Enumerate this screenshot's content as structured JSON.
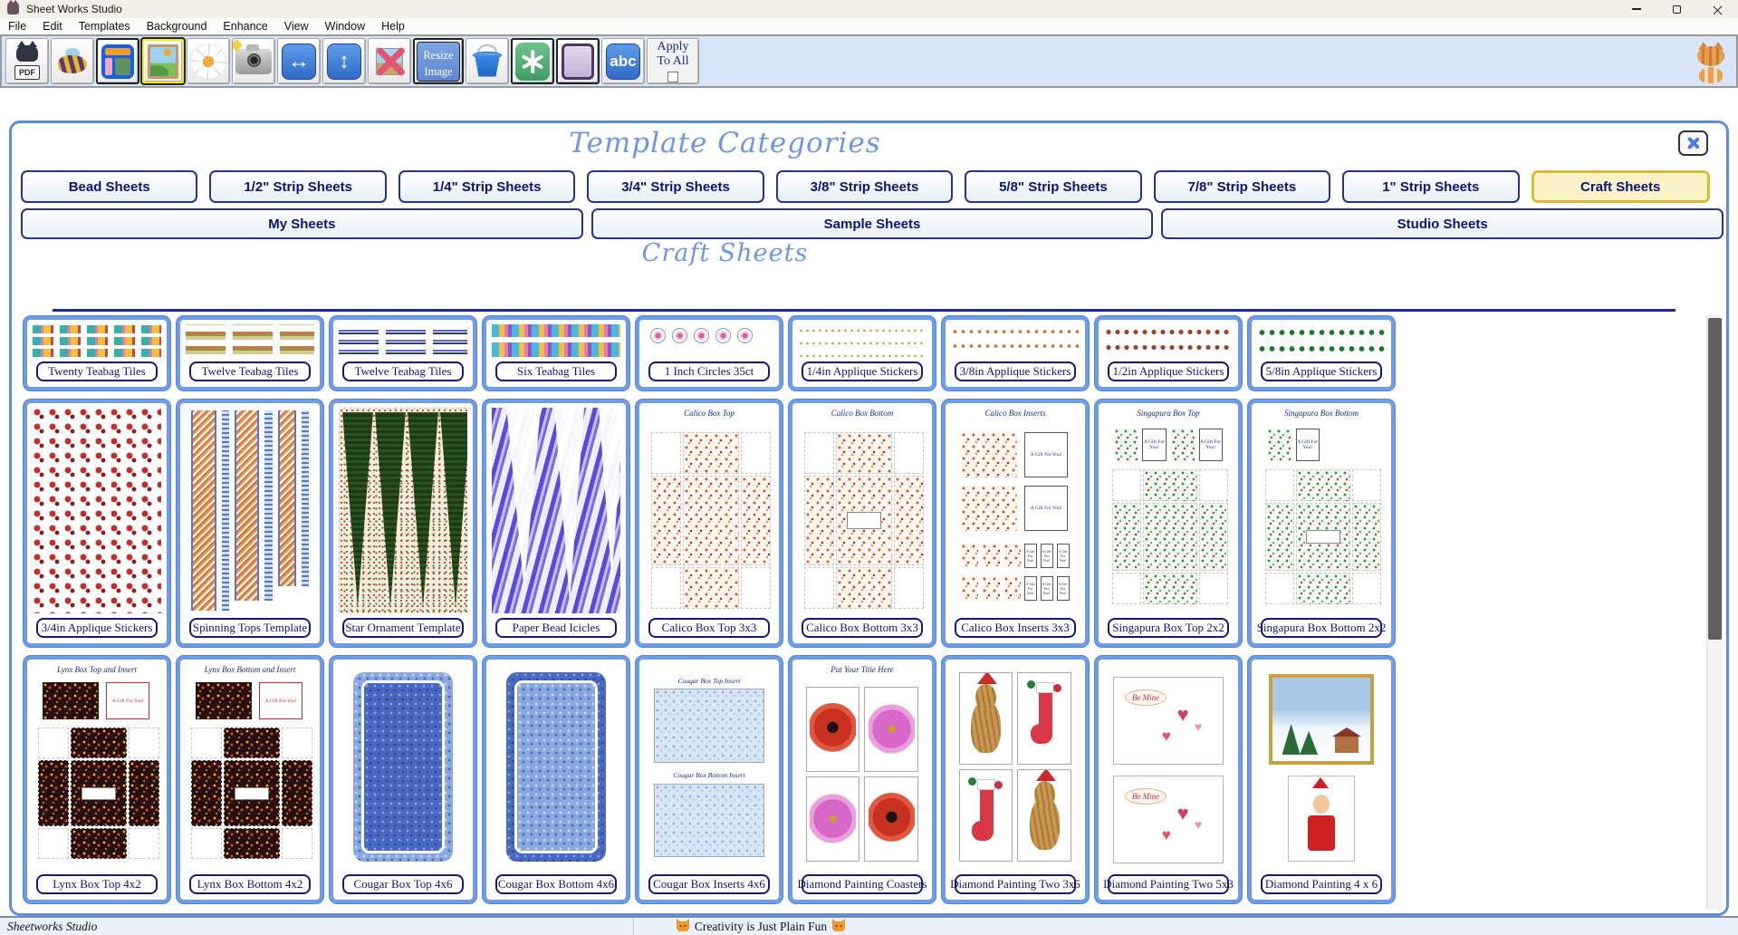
{
  "window": {
    "title": "Sheet Works Studio"
  },
  "menu": {
    "items": [
      "File",
      "Edit",
      "Templates",
      "Background",
      "Enhance",
      "View",
      "Window",
      "Help"
    ]
  },
  "toolbar": {
    "pdf_label": "PDF",
    "resize_label_1": "Resize",
    "resize_label_2": "Image",
    "abc_label": "abc",
    "apply_label_1": "Apply",
    "apply_label_2": "To All",
    "buttons": [
      "pdf-export",
      "bee",
      "layout-template",
      "insert-image",
      "daisy",
      "camera",
      "flip-horizontal",
      "flip-vertical",
      "remove-image",
      "resize-image",
      "paint-bucket",
      "green-asterisk",
      "purple-swatch",
      "text-abc",
      "apply-to-all"
    ],
    "selected_button": "insert-image"
  },
  "dialog": {
    "title": "Template Categories",
    "categories_row1": [
      "Bead Sheets",
      "1/2\" Strip Sheets",
      "1/4\" Strip Sheets",
      "3/4\" Strip Sheets",
      "3/8\" Strip Sheets",
      "5/8\" Strip Sheets",
      "7/8\" Strip Sheets",
      "1\" Strip Sheets",
      "Craft Sheets"
    ],
    "active_category": "Craft Sheets",
    "categories_row2": [
      "My Sheets",
      "Sample Sheets",
      "Studio Sheets"
    ],
    "section_title": "Craft Sheets",
    "grid": {
      "gift_text": "A Gift For You!",
      "rows": [
        {
          "cards": [
            {
              "label": "Twenty Teabag Tiles",
              "art": "teabag-multi"
            },
            {
              "label": "Twelve Teabag Tiles",
              "art": "teabag-tan"
            },
            {
              "label": "Twelve Teabag Tiles",
              "art": "teabag-navy"
            },
            {
              "label": "Six Teabag Tiles",
              "art": "teabag-kaleido"
            },
            {
              "label": "1 Inch Circles 35ct",
              "art": "circles"
            },
            {
              "label": "1/4in Applique Stickers",
              "art": "stickers-gold"
            },
            {
              "label": "3/8in Applique Stickers",
              "art": "stickers-orange"
            },
            {
              "label": "1/2in Applique Stickers",
              "art": "stickers-red"
            },
            {
              "label": "5/8in Applique Stickers",
              "art": "stickers-green"
            }
          ]
        },
        {
          "cards": [
            {
              "label": "3/4in Applique Stickers",
              "art": "stockings"
            },
            {
              "label": "Spinning Tops Template",
              "art": "spinning-tops"
            },
            {
              "label": "Star Ornament Template",
              "art": "star-ornament"
            },
            {
              "label": "Paper Bead Icicles",
              "art": "icicles"
            },
            {
              "label": "Calico Box Top 3x3",
              "thumb_title": "Calico Box Top",
              "art": "calico-net"
            },
            {
              "label": "Calico Box Bottom 3x3",
              "thumb_title": "Calico Box Bottom",
              "art": "calico-net-bottom"
            },
            {
              "label": "Calico Box Inserts 3x3",
              "thumb_title": "Calico Box Inserts",
              "art": "calico-inserts"
            },
            {
              "label": "Singapura Box Top 2x2",
              "thumb_title": "Singapura Box Top",
              "art": "singapura-top"
            },
            {
              "label": "Singapura Box Bottom 2x2",
              "thumb_title": "Singapura Box Bottom",
              "art": "singapura-bottom"
            }
          ]
        },
        {
          "cards": [
            {
              "label": "Lynx Box Top 4x2",
              "thumb_title": "Lynx Box Top and Insert",
              "art": "lynx-net"
            },
            {
              "label": "Lynx Box Bottom 4x2",
              "thumb_title": "Lynx Box Bottom and Insert",
              "art": "lynx-net"
            },
            {
              "label": "Cougar Box Top 4x6",
              "art": "cougar-top"
            },
            {
              "label": "Cougar Box Bottom 4x6",
              "art": "cougar-bottom"
            },
            {
              "label": "Cougar Box Inserts 4x6",
              "art": "cougar-inserts",
              "captions": [
                "Cougar Box Top Insert",
                "Cougar Box Bottom Insert"
              ]
            },
            {
              "label": "Diamond Painting Coasters",
              "thumb_title": "Put Your Title Here",
              "art": "coasters"
            },
            {
              "label": "Diamond Painting Two 3x5",
              "art": "diamond-two-3x5"
            },
            {
              "label": "Diamond Painting Two 5x3",
              "art": "diamond-hearts",
              "captions": [
                "Be Mine",
                "Be Mine"
              ]
            },
            {
              "label": "Diamond Painting 4 x 6",
              "art": "diamond-4x6"
            }
          ]
        }
      ]
    }
  },
  "statusbar": {
    "left": "Sheetworks Studio",
    "center": "Creativity is Just Plain Fun"
  },
  "colors": {
    "dialog_border": "#5b8ede",
    "heading_blue": "#6d96e6",
    "card_frame": "#6f9ce8",
    "label_navy": "#12127a",
    "active_tab_bg": "#fbf3c8",
    "active_tab_border": "#d8bc3a",
    "toolbar_bg": "#d7e5f6"
  }
}
